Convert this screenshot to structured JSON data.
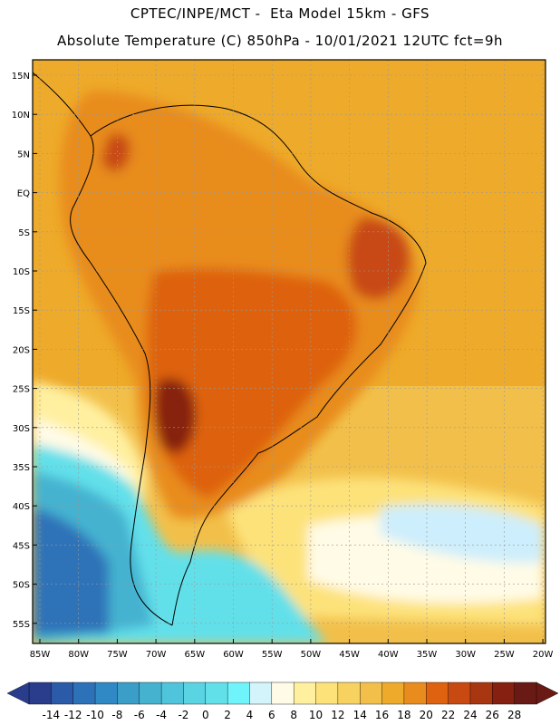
{
  "header": {
    "line1": "CPTEC/INPE/MCT -  Eta Model 15km - GFS",
    "line2": "Absolute Temperature (C) 850hPa - 10/01/2021 12UTC fct=9h"
  },
  "map": {
    "lat_ticks": [
      "15N",
      "10N",
      "5N",
      "EQ",
      "5S",
      "10S",
      "15S",
      "20S",
      "25S",
      "30S",
      "35S",
      "40S",
      "45S",
      "50S",
      "55S"
    ],
    "lon_ticks": [
      "85W",
      "80W",
      "75W",
      "70W",
      "65W",
      "60W",
      "55W",
      "50W",
      "45W",
      "40W",
      "35W",
      "30W",
      "25W",
      "20W"
    ],
    "regions": [
      {
        "name": "cold-south-atlantic",
        "color": "#5bd8ec"
      },
      {
        "name": "very-cold-core",
        "color": "#2e8fd0"
      },
      {
        "name": "warm-continent",
        "color": "#e8a23a"
      },
      {
        "name": "hot-interior",
        "color": "#c9531b"
      },
      {
        "name": "hottest-chaco",
        "color": "#7a2010"
      },
      {
        "name": "mild-ocean",
        "color": "#f0c850"
      },
      {
        "name": "cool-ocean-patch",
        "color": "#cdeefc"
      }
    ]
  },
  "colorbar": {
    "labels": [
      "-14",
      "-12",
      "-10",
      "-8",
      "-6",
      "-4",
      "-2",
      "0",
      "2",
      "4",
      "6",
      "8",
      "10",
      "12",
      "14",
      "16",
      "18",
      "20",
      "22",
      "24",
      "26",
      "28"
    ],
    "colors": [
      "#2a3d8c",
      "#2b5aa8",
      "#2d72b8",
      "#3088c4",
      "#3a9ec8",
      "#45b2d0",
      "#50c4da",
      "#5ad4e2",
      "#62e0ea",
      "#6ef4fa",
      "#d2f4fa",
      "#fffbe6",
      "#fff0a0",
      "#fde27a",
      "#f8d260",
      "#f2c04a",
      "#eeaa2a",
      "#e88c1e",
      "#de6210",
      "#c84a12",
      "#a83610",
      "#862010",
      "#6a1a14"
    ]
  }
}
